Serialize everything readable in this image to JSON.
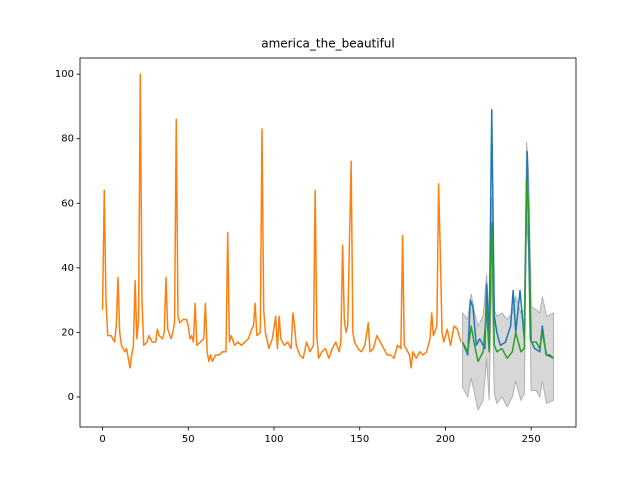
{
  "chart_data": {
    "type": "line",
    "title": "america_the_beautiful",
    "xlim": [
      -13.15,
      276.15
    ],
    "ylim": [
      -9.3,
      105
    ],
    "xticks": [
      0,
      50,
      100,
      150,
      200,
      250
    ],
    "yticks": [
      0,
      20,
      40,
      60,
      80,
      100
    ],
    "band": {
      "color": "#d3d3d3",
      "x": [
        210,
        213,
        215,
        217,
        219,
        222,
        224,
        225.5,
        227,
        228.5,
        230,
        233,
        236,
        239,
        241,
        244,
        246,
        247.3,
        248.5,
        250,
        253,
        255,
        256.5,
        259,
        263
      ],
      "lower": [
        3,
        0,
        6,
        1,
        -4,
        -1,
        12,
        -1,
        38,
        1,
        -2,
        0,
        -3,
        0,
        5,
        -1,
        1,
        55,
        45,
        2,
        2,
        0,
        5,
        -2,
        -1
      ],
      "upper": [
        26,
        24,
        32,
        26,
        22,
        25,
        38,
        25,
        62,
        27,
        25,
        26,
        24,
        26,
        31,
        26,
        27,
        79,
        70,
        28,
        27,
        26,
        31,
        25,
        26
      ]
    },
    "series": [
      {
        "color": "#1f77b4",
        "x": [
          210,
          213,
          214.5,
          216,
          218,
          220,
          223,
          224,
          225.5,
          227,
          228.5,
          230,
          232,
          235,
          238,
          239.5,
          241,
          243.5,
          246,
          247.7,
          249.5,
          252,
          255,
          256.5,
          258.7,
          261,
          263
        ],
        "values": [
          17,
          13,
          30,
          28,
          16,
          18,
          15,
          35,
          18,
          89,
          25,
          20,
          16,
          17,
          22,
          33,
          20,
          33,
          18,
          76,
          18,
          15,
          14,
          22,
          13,
          13,
          12
        ]
      },
      {
        "color": "#ff7f0e",
        "x": [
          0,
          1,
          2,
          3,
          5,
          7,
          8,
          9,
          10,
          11,
          13,
          14,
          15,
          16,
          17,
          18,
          19,
          20,
          21,
          22,
          23,
          24,
          26,
          27,
          28,
          29,
          31,
          32,
          33,
          35,
          36,
          37,
          38,
          40,
          41,
          42,
          43,
          44,
          45,
          47,
          49,
          50,
          51,
          52,
          53,
          54,
          55,
          57,
          59,
          60,
          61,
          62,
          63,
          64,
          66,
          68,
          70,
          72,
          73,
          74,
          75,
          77,
          79,
          81,
          83,
          85,
          87,
          88,
          89,
          90,
          92,
          93,
          94,
          95,
          97,
          99,
          101,
          102,
          103,
          104,
          106,
          108,
          110,
          111,
          112,
          113,
          115,
          117,
          119,
          121,
          123,
          124,
          125,
          126,
          128,
          130,
          132,
          134,
          136,
          138,
          139,
          140,
          141,
          142,
          143,
          145,
          146,
          147,
          149,
          151,
          153,
          155,
          156,
          158,
          160,
          162,
          164,
          166,
          168,
          170,
          172,
          174,
          175,
          176,
          178,
          179,
          180,
          181,
          183,
          185,
          187,
          189,
          191,
          192,
          193,
          195,
          196,
          197,
          198,
          199,
          201,
          203,
          205,
          207,
          209
        ],
        "values": [
          27,
          64,
          30,
          19,
          19,
          17,
          22,
          37,
          20,
          16,
          14,
          15,
          12,
          9,
          13,
          16,
          36,
          18,
          24,
          100,
          30,
          16,
          17,
          19,
          18,
          17,
          17,
          21,
          19,
          18,
          20,
          37,
          21,
          18,
          20,
          23,
          86,
          25,
          23,
          24,
          24,
          22,
          18,
          19,
          17,
          29,
          16,
          17,
          18,
          29,
          14,
          11,
          13,
          11,
          13,
          13,
          14,
          14,
          51,
          17,
          19,
          16,
          17,
          16,
          17,
          18,
          21,
          22,
          29,
          19,
          20,
          83,
          27,
          20,
          15,
          18,
          25,
          15,
          25,
          18,
          16,
          17,
          15,
          26,
          22,
          16,
          13,
          12,
          17,
          14,
          16,
          64,
          19,
          12,
          14,
          15,
          12,
          15,
          17,
          14,
          17,
          47,
          24,
          20,
          22,
          73,
          20,
          17,
          15,
          14,
          16,
          23,
          14,
          15,
          19,
          17,
          15,
          13,
          13,
          12,
          16,
          15,
          50,
          16,
          14,
          13,
          9,
          14,
          12,
          14,
          13,
          14,
          18,
          26,
          19,
          22,
          66,
          45,
          20,
          17,
          21,
          16,
          22,
          21,
          17
        ]
      },
      {
        "color": "#2ca02c",
        "x": [
          210,
          213,
          215,
          217,
          219,
          222,
          224,
          225.5,
          227,
          228.5,
          230,
          233,
          236,
          239,
          241,
          244,
          246,
          247.3,
          248.5,
          250,
          253,
          255,
          256.5,
          259,
          263
        ],
        "values": [
          17,
          14,
          22,
          16,
          11,
          14,
          27,
          14,
          54,
          16,
          14,
          15,
          12,
          14,
          20,
          14,
          15,
          67,
          60,
          17,
          17,
          15,
          20,
          13,
          12
        ]
      }
    ]
  }
}
